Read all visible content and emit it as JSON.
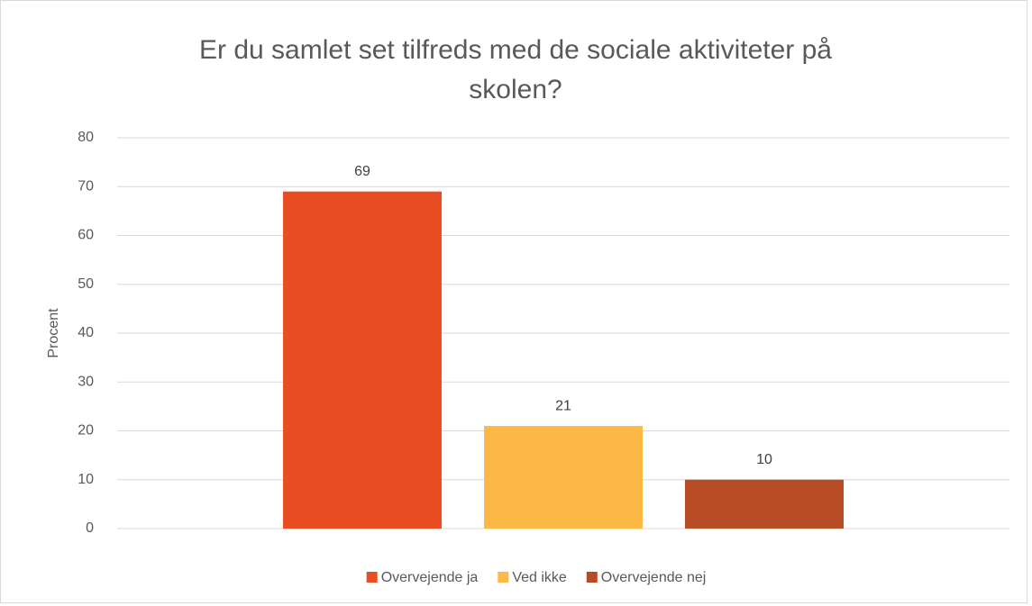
{
  "chart_data": {
    "type": "bar",
    "title": "Er du samlet set tilfreds med de sociale aktiviteter på skolen?",
    "ylabel": "Procent",
    "categories": [
      null
    ],
    "series": [
      {
        "name": "Overvejende ja",
        "color": "#e84e22",
        "values": [
          69
        ]
      },
      {
        "name": "Ved ikke",
        "color": "#fdb945",
        "values": [
          21
        ]
      },
      {
        "name": "Overvejende nej",
        "color": "#b74c24",
        "values": [
          10
        ]
      }
    ],
    "ylim": [
      0,
      80
    ],
    "yticks": [
      0,
      10,
      20,
      30,
      40,
      50,
      60,
      70,
      80
    ],
    "grid": true,
    "legend": "bottom",
    "data_labels": true
  }
}
